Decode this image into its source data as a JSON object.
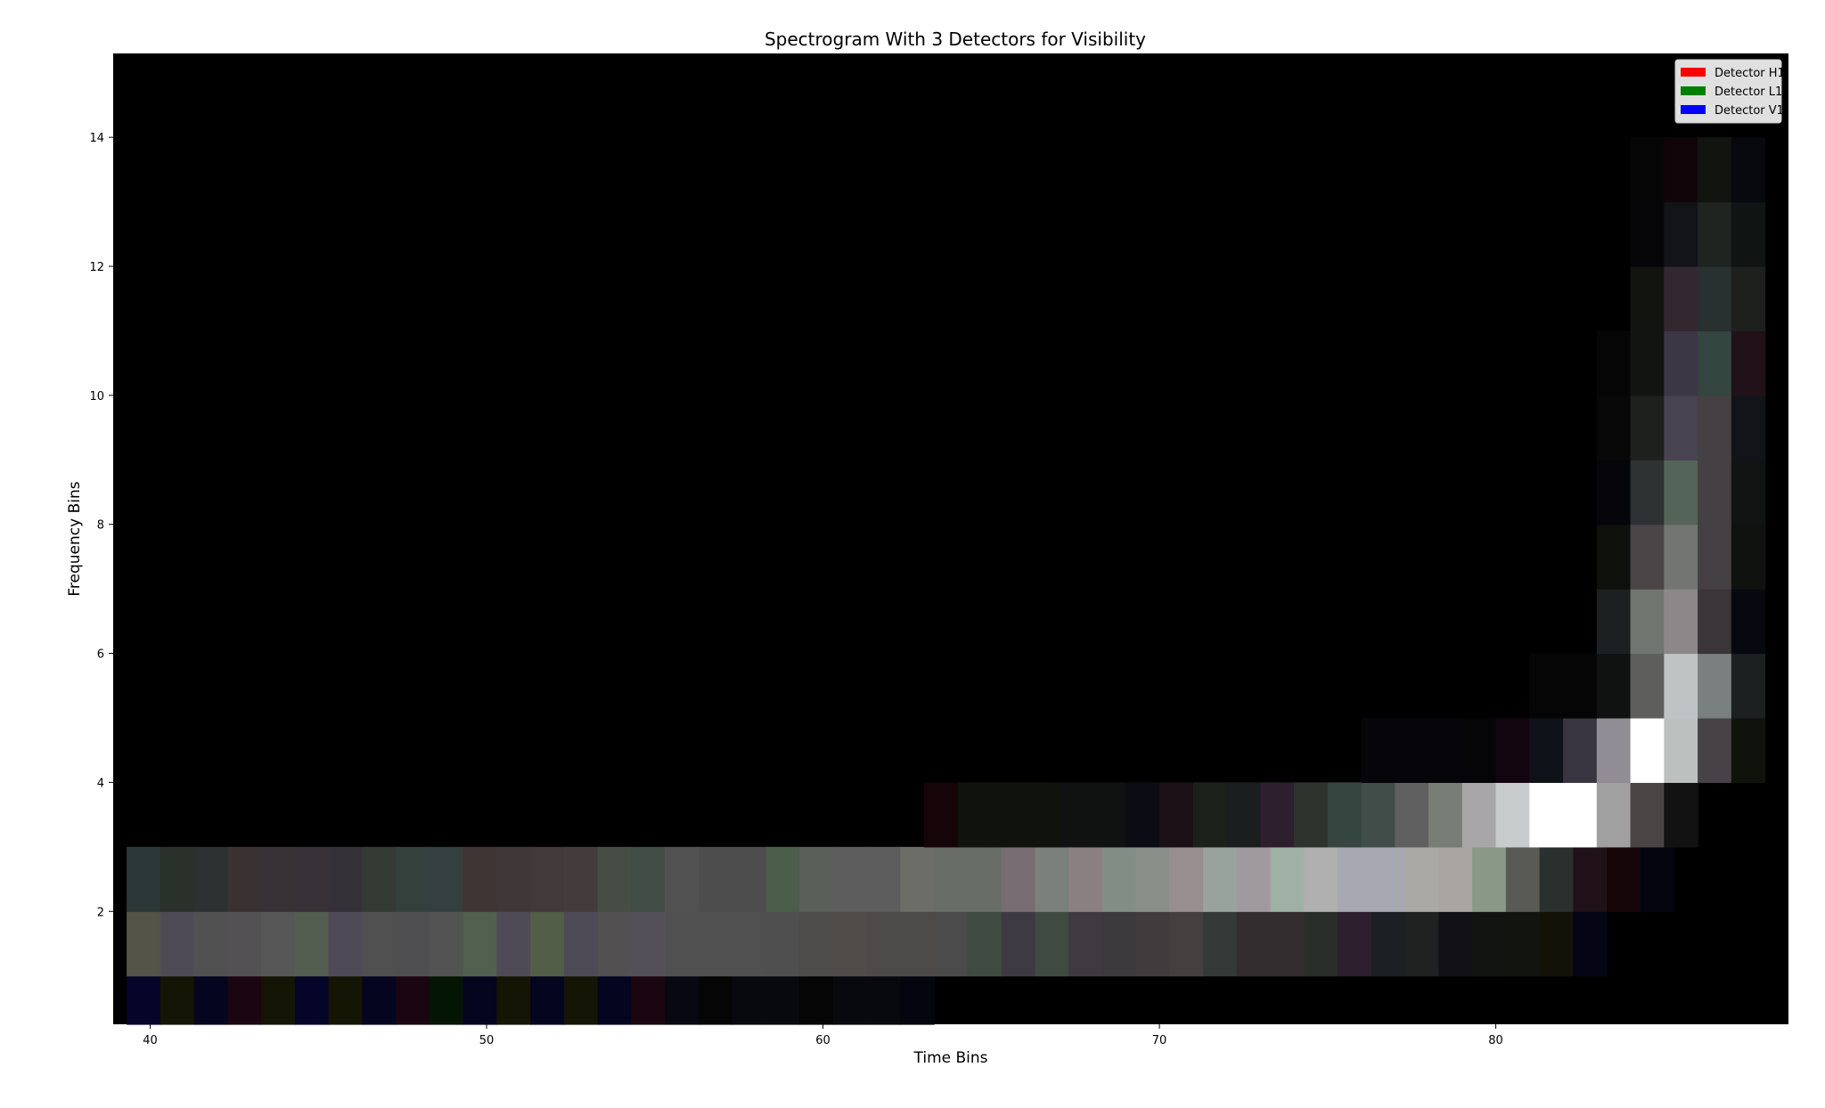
{
  "chart_data": {
    "type": "heatmap",
    "title": "Spectrogram With 3 Detectors for Visibility",
    "xlabel": "Time Bins",
    "ylabel": "Frequency Bins",
    "xlim": [
      38.9,
      88.7
    ],
    "ylim": [
      0.25,
      15.3
    ],
    "xticks": [
      40,
      50,
      60,
      70,
      80
    ],
    "yticks": [
      2,
      4,
      6,
      8,
      10,
      12,
      14
    ],
    "background": "#000000",
    "legend": {
      "position": "top-right",
      "entries": [
        {
          "label": "Detector H1",
          "color": "#ff0000"
        },
        {
          "label": "Detector L1",
          "color": "#008000"
        },
        {
          "label": "Detector V1",
          "color": "#0000ff"
        }
      ]
    },
    "rows": [
      {
        "freq": [
          0.25,
          1
        ],
        "start": 39.3,
        "cells": [
          "#05052a",
          "#151505",
          "#050520",
          "#1a0510",
          "#151505",
          "#05052a",
          "#151505",
          "#050520",
          "#1a0510",
          "#051505",
          "#050520",
          "#151505",
          "#050520",
          "#151505",
          "#050520",
          "#1a0510",
          "#080812",
          "#050505",
          "#08080f",
          "#08080f",
          "#050505",
          "#08080f",
          "#08080f",
          "#050510"
        ]
      },
      {
        "freq": [
          1,
          2
        ],
        "start": 39.3,
        "cells": [
          "#545448",
          "#4e4b56",
          "#515151",
          "#535153",
          "#575758",
          "#535d50",
          "#4f4a58",
          "#505050",
          "#4f4f52",
          "#535353",
          "#526050",
          "#4e4b56",
          "#525e47",
          "#4e4b56",
          "#525050",
          "#54505a",
          "#505050",
          "#505050",
          "#505050",
          "#4f4f4f",
          "#4e4d4c",
          "#4f4c4a",
          "#4d4b49",
          "#4d4b49",
          "#4b4b4b",
          "#3f4a40",
          "#3d3a44",
          "#3f4a40",
          "#3f3a3f",
          "#3d3a3d",
          "#403b3d",
          "#454040",
          "#333a37",
          "#332d30",
          "#332d30",
          "#2a2e2b",
          "#2d1f2d",
          "#1c2025",
          "#1f2220",
          "#121216",
          "#121412",
          "#121410",
          "#121208",
          "#050515"
        ]
      },
      {
        "freq": [
          2,
          3
        ],
        "start": 39.3,
        "cells": [
          "#2c3838",
          "#2a302a",
          "#2c3232",
          "#3a3232",
          "#383236",
          "#383138",
          "#343038",
          "#343a34",
          "#34403c",
          "#353f3f",
          "#403535",
          "#403838",
          "#423a3a",
          "#443c3c",
          "#454d45",
          "#424d48",
          "#525252",
          "#4d4d4d",
          "#4d4d4d",
          "#4b5d4b",
          "#5a5f5a",
          "#5d5d5d",
          "#5d5d5d",
          "#6c6d66",
          "#686d68",
          "#686d68",
          "#786d72",
          "#7a807c",
          "#8a8082",
          "#828e85",
          "#888e88",
          "#988e90",
          "#98a39e",
          "#a09a9e",
          "#9fb0a5",
          "#b0b0b0",
          "#a8a8b2",
          "#a8a8b2",
          "#aaa9a5",
          "#a8a5a2",
          "#8a9888",
          "#5a5a54",
          "#2a302d",
          "#201218",
          "#150509",
          "#050510"
        ]
      },
      {
        "freq": [
          3,
          4
        ],
        "start": 63.0,
        "cells": [
          "#150508",
          "#10120c",
          "#10120c",
          "#10120c",
          "#0f1210",
          "#0f1210",
          "#0c0c14",
          "#1a1016",
          "#1c201b",
          "#1a1e1e",
          "#2d1f2d",
          "#2d332d",
          "#354540",
          "#404d48",
          "#606060",
          "#787d76",
          "#a8a6a8",
          "#c8cccc",
          "#ffffff",
          "#ffffff",
          "#a0a0a0",
          "#4a4545",
          "#121212"
        ]
      },
      {
        "freq": [
          4,
          5
        ],
        "start": 76.0,
        "cells": [
          "#05050a",
          "#05050a",
          "#05050a",
          "#050508",
          "#120510",
          "#10121a",
          "#383540",
          "#908d95",
          "#ffffff",
          "#bcc0be",
          "#474245",
          "#10120c"
        ]
      },
      {
        "freq": [
          5,
          6
        ],
        "start": 81.0,
        "cells": [
          "#050505",
          "#050505",
          "#101212",
          "#5e5f5d",
          "#bec4c4",
          "#7a8080",
          "#1d2020"
        ]
      },
      {
        "freq": [
          6,
          7
        ],
        "start": 83.0,
        "cells": [
          "#1c2020",
          "#707570",
          "#8e878a",
          "#3a3539",
          "#080810"
        ]
      },
      {
        "freq": [
          7,
          8
        ],
        "start": 83.0,
        "cells": [
          "#0e100c",
          "#4b4548",
          "#727572",
          "#454043",
          "#101210"
        ]
      },
      {
        "freq": [
          8,
          9
        ],
        "start": 83.0,
        "cells": [
          "#05050a",
          "#2e3232",
          "#546458",
          "#454043",
          "#121414"
        ]
      },
      {
        "freq": [
          9,
          10
        ],
        "start": 83.0,
        "cells": [
          "#080808",
          "#1e201e",
          "#474350",
          "#454043",
          "#12141a"
        ]
      },
      {
        "freq": [
          10,
          11
        ],
        "start": 83.0,
        "cells": [
          "#050505",
          "#121412",
          "#3c3745",
          "#354540",
          "#201218"
        ]
      },
      {
        "freq": [
          11,
          12
        ],
        "start": 84.0,
        "cells": [
          "#121410",
          "#342830",
          "#283030",
          "#1e201e"
        ]
      },
      {
        "freq": [
          12,
          13
        ],
        "start": 84.0,
        "cells": [
          "#050508",
          "#121418",
          "#202420",
          "#101412"
        ]
      },
      {
        "freq": [
          13,
          14
        ],
        "start": 84.0,
        "cells": [
          "#050505",
          "#120509",
          "#121410",
          "#08080f"
        ]
      }
    ]
  }
}
